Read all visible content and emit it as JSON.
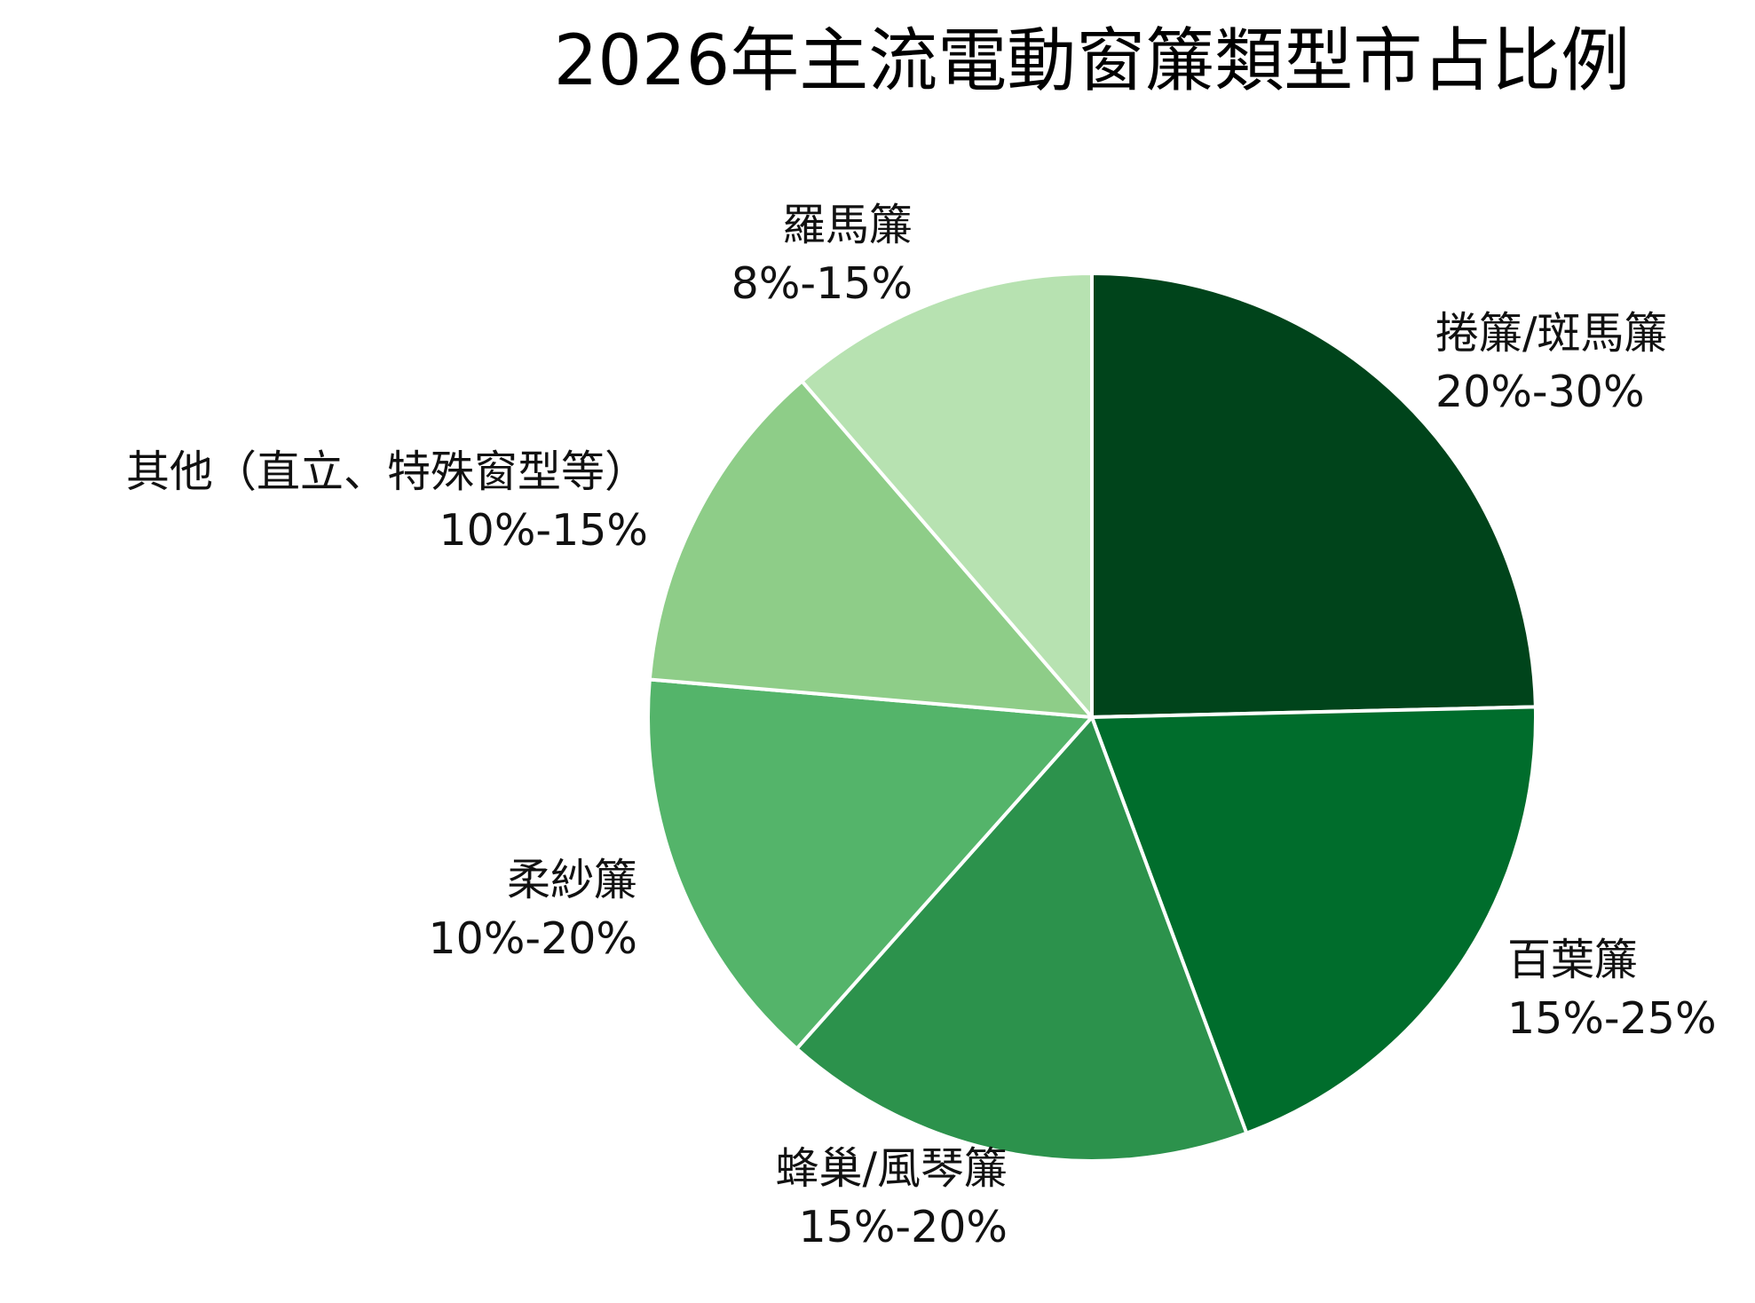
{
  "chart_data": {
    "type": "pie",
    "title": "2026年主流電動窗簾類型市占比例",
    "slices": [
      {
        "name": "捲簾/斑馬簾",
        "range_label": "20%-30%",
        "value": 25,
        "color": "#00441b"
      },
      {
        "name": "百葉簾",
        "range_label": "15%-25%",
        "value": 20,
        "color": "#006d2c"
      },
      {
        "name": "蜂巢/風琴簾",
        "range_label": "15%-20%",
        "value": 17.5,
        "color": "#2c924c"
      },
      {
        "name": "柔紗簾",
        "range_label": "10%-20%",
        "value": 15,
        "color": "#54b46a"
      },
      {
        "name": "其他（直立、特殊窗型等）",
        "range_label": "10%-15%",
        "value": 12.5,
        "color": "#8ecd88"
      },
      {
        "name": "羅馬簾",
        "range_label": "8%-15%",
        "value": 11.5,
        "color": "#b7e2b1"
      }
    ]
  }
}
